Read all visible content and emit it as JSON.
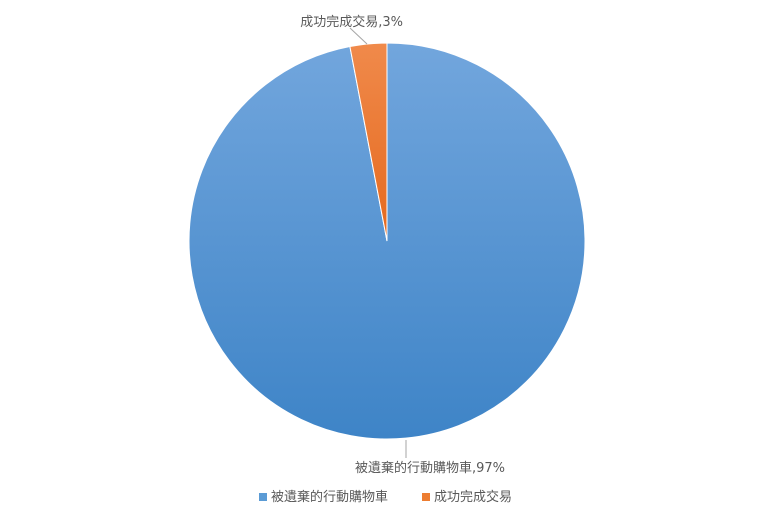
{
  "chart_data": {
    "type": "pie",
    "title": "",
    "start_angle": "top, clockwise",
    "slices": [
      {
        "name": "被遺棄的行動購物車",
        "value": 97,
        "label": "被遺棄的行動購物車,97%",
        "color": "#5b9bd5"
      },
      {
        "name": "成功完成交易",
        "value": 3,
        "label": "成功完成交易,3%",
        "color": "#ed7d31"
      }
    ],
    "legend": {
      "placement": "bottom",
      "entries": [
        "被遺棄的行動購物車",
        "成功完成交易"
      ]
    }
  }
}
